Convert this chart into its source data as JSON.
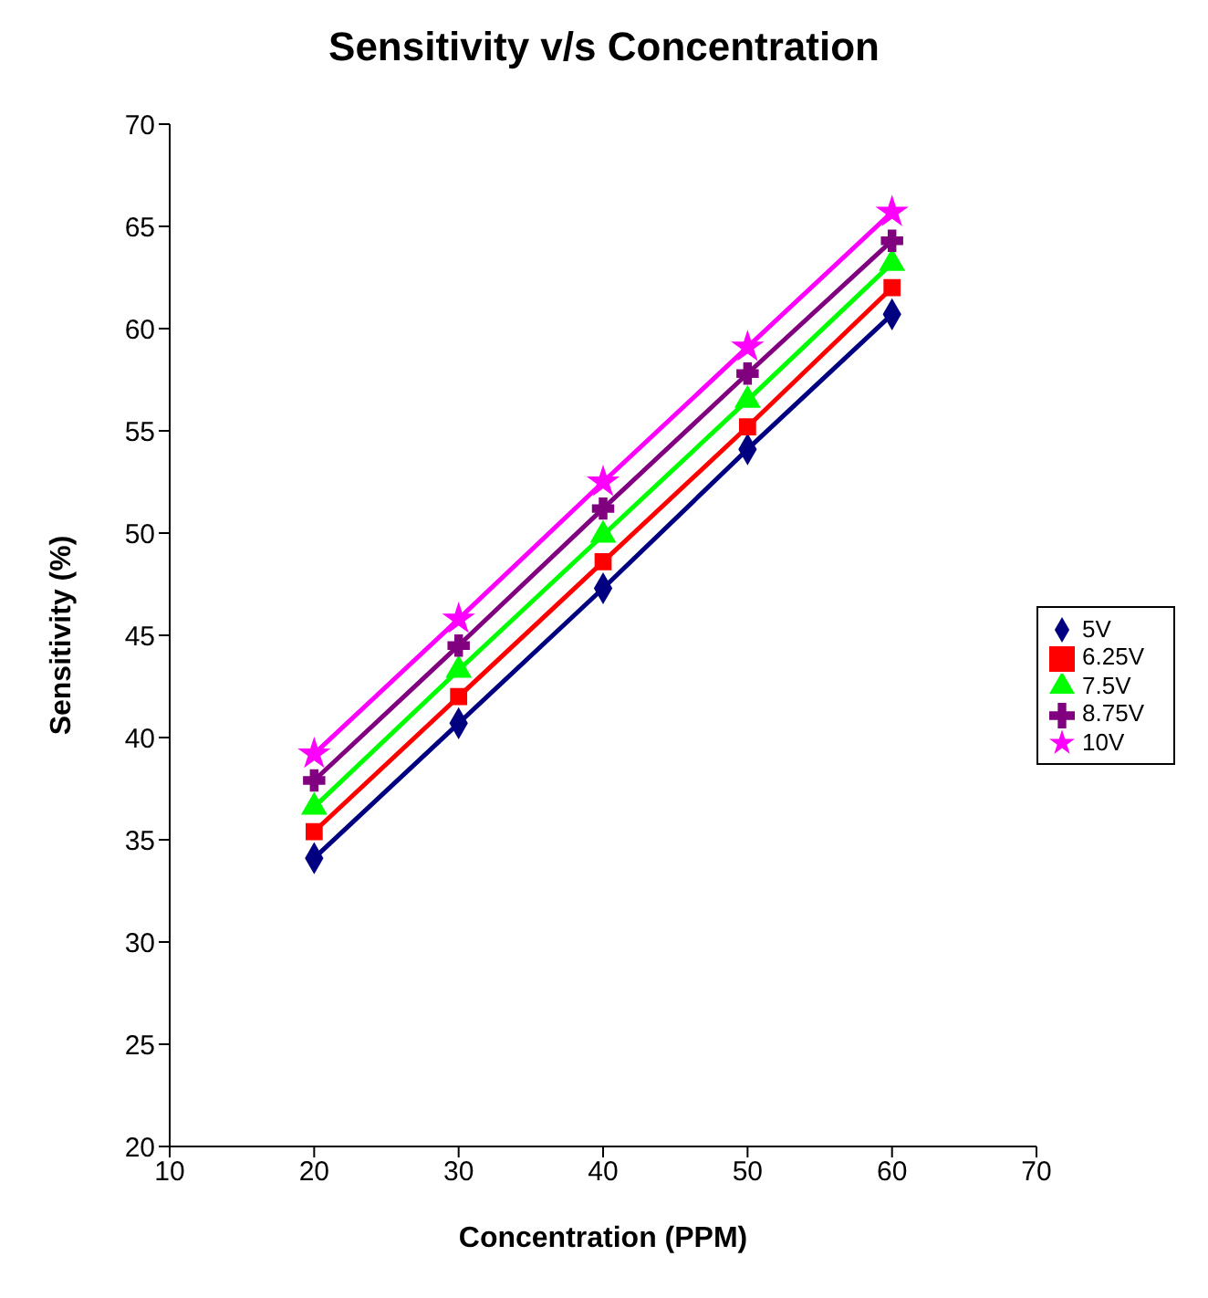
{
  "chart_data": {
    "type": "line",
    "title": "Sensitivity v/s Concentration",
    "xlabel": "Concentration (PPM)",
    "ylabel": "Sensitivity (%)",
    "x": [
      20,
      30,
      40,
      50,
      60
    ],
    "series": [
      {
        "name": "5V",
        "color": "#000080",
        "marker": "diamond",
        "values": [
          34.1,
          40.7,
          47.3,
          54.1,
          60.7
        ]
      },
      {
        "name": "6.25V",
        "color": "#ff0000",
        "marker": "square",
        "values": [
          35.4,
          42.0,
          48.6,
          55.2,
          62.0
        ]
      },
      {
        "name": "7.5V",
        "color": "#00ff00",
        "marker": "triangle",
        "values": [
          36.6,
          43.3,
          49.9,
          56.5,
          63.2
        ]
      },
      {
        "name": "8.75V",
        "color": "#800080",
        "marker": "cross",
        "values": [
          37.9,
          44.5,
          51.2,
          57.8,
          64.3
        ]
      },
      {
        "name": "10V",
        "color": "#ff00ff",
        "marker": "star",
        "values": [
          39.2,
          45.8,
          52.5,
          59.1,
          65.7
        ]
      }
    ],
    "xlim": [
      10,
      70
    ],
    "xticks": [
      10,
      20,
      30,
      40,
      50,
      60,
      70
    ],
    "ylim": [
      20,
      70
    ],
    "yticks": [
      20,
      25,
      30,
      35,
      40,
      45,
      50,
      55,
      60,
      65,
      70
    ],
    "grid": false,
    "legend": "right",
    "line_style": "solid"
  }
}
